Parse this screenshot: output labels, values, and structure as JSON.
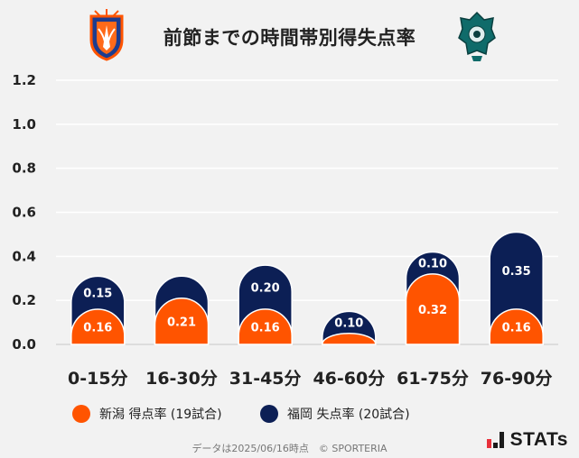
{
  "header": {
    "title": "前節までの時間帯別得失点率"
  },
  "chart_data": {
    "type": "bar",
    "title": "前節までの時間帯別得失点率",
    "categories": [
      "0-15分",
      "16-30分",
      "31-45分",
      "46-60分",
      "61-75分",
      "76-90分"
    ],
    "series": [
      {
        "name": "新潟 得点率 (19試合)",
        "values": [
          0.16,
          0.21,
          0.16,
          0.05,
          0.32,
          0.16
        ],
        "labels": [
          "0.16",
          "0.21",
          "0.16",
          "",
          "0.32",
          "0.16"
        ],
        "color": "#ff5400"
      },
      {
        "name": "福岡 失点率 (20試合)",
        "values": [
          0.15,
          0.1,
          0.2,
          0.1,
          0.1,
          0.35
        ],
        "labels": [
          "0.15",
          "",
          "0.20",
          "0.10",
          "0.10",
          "0.35"
        ],
        "color": "#0c1f55"
      }
    ],
    "yticks": [
      "0.0",
      "0.2",
      "0.4",
      "0.6",
      "0.8",
      "1.0",
      "1.2"
    ],
    "ylim": [
      0,
      1.2
    ],
    "grid": true,
    "legend": "bottom",
    "xlabel": "",
    "ylabel": ""
  },
  "footer": {
    "source": "データは2025/06/16時点　© SPORTERIA",
    "brand": "STATs"
  },
  "colors": {
    "home": "#ff5400",
    "away": "#0c1f55",
    "background": "#f2f2f2"
  }
}
